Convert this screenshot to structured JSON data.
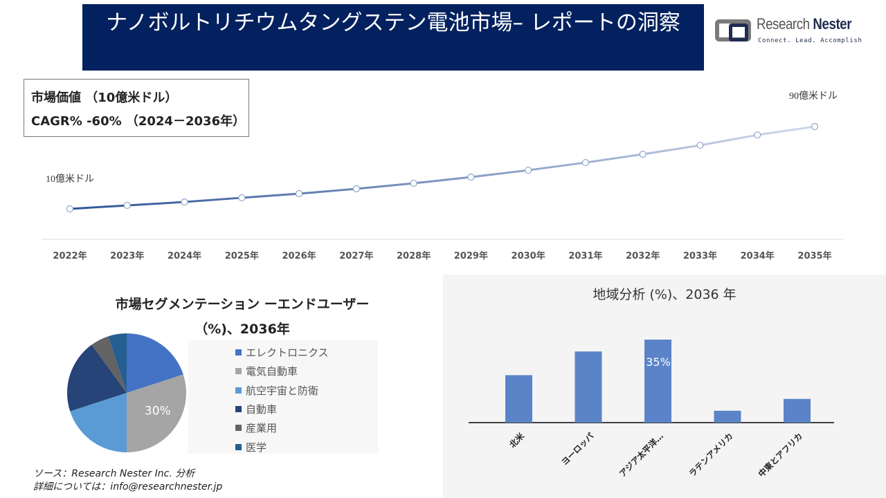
{
  "header": {
    "title": "ナノボルトリチウムタングステン電池市場– レポートの洞察",
    "logo_name": "Research Nester",
    "logo_tagline": "Connect. Lead. Accomplish"
  },
  "kpi": {
    "line1": "市場価値 （10億米ドル）",
    "line2": "CAGR% -60% （2024－2036年）"
  },
  "chart_data": [
    {
      "type": "line",
      "x": [
        "2022年",
        "2023年",
        "2024年",
        "2025年",
        "2026年",
        "2027年",
        "2028年",
        "2029年",
        "2030年",
        "2031年",
        "2032年",
        "2033年",
        "2034年",
        "2035年"
      ],
      "values": [
        1.0,
        1.34,
        1.67,
        2.08,
        2.48,
        2.95,
        3.49,
        4.09,
        4.76,
        5.5,
        6.31,
        7.18,
        8.19,
        9.0
      ],
      "annotations": {
        "start": "10億米ドル",
        "end": "90億米ドル"
      },
      "grid": false,
      "color_start": "#2f5597",
      "color_end": "#d0d9ea"
    },
    {
      "type": "pie",
      "title": "市場セグメンテーション ーエンドユーザー（%)、2036年",
      "categories": [
        "エレクトロニクス",
        "電気自動車",
        "航空宇宙と防衛",
        "自動車",
        "産業用",
        "医学"
      ],
      "values": [
        20,
        30,
        20,
        20,
        5,
        5
      ],
      "colors": [
        "#4472c4",
        "#a5a5a5",
        "#5b9bd5",
        "#264478",
        "#636363",
        "#255e91"
      ],
      "data_labels": {
        "1": "30%"
      },
      "legend": "right"
    },
    {
      "type": "bar",
      "title": "地域分析 (%)、2036 年",
      "categories": [
        "北米",
        "ヨーロッパ",
        "アジア太平洋…",
        "ラテンアメリカ",
        "中東とアフリカ"
      ],
      "values": [
        20,
        30,
        35,
        5,
        10
      ],
      "color": "#5b84c8",
      "data_labels": {
        "2": "35%"
      }
    }
  ],
  "source": {
    "line1": "ソース：Research Nester Inc. 分析",
    "line2": "詳細については：info@researchnester.jp"
  }
}
